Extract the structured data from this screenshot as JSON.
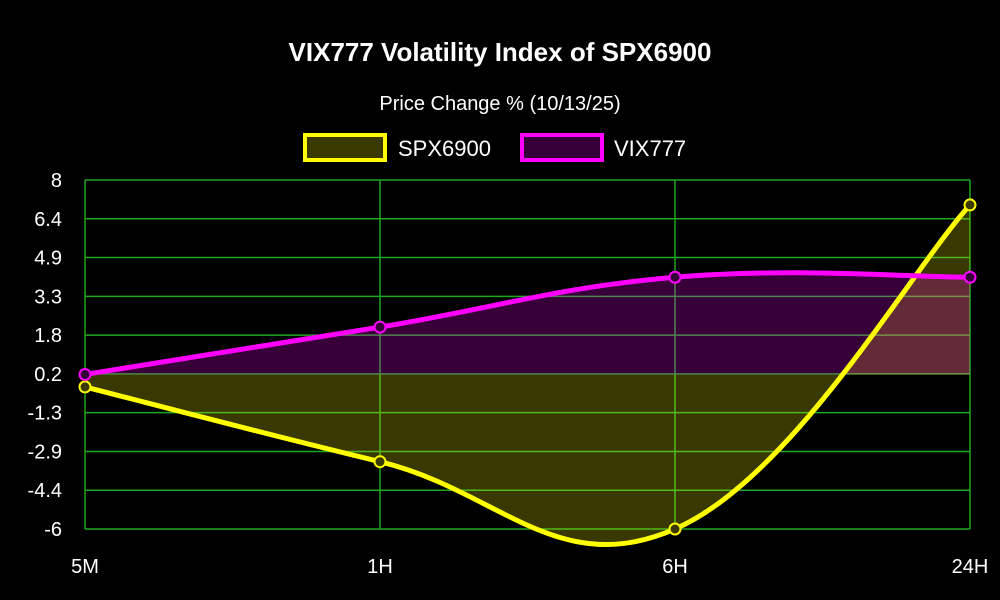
{
  "chart_data": {
    "type": "line",
    "title": "VIX777 Volatility Index of SPX6900",
    "subtitle": "Price Change % (10/13/25)",
    "categories": [
      "5M",
      "1H",
      "6H",
      "24H"
    ],
    "y_ticks": [
      "8",
      "6.4",
      "4.9",
      "3.3",
      "1.8",
      "0.2",
      "-1.3",
      "-2.9",
      "-4.4",
      "-6"
    ],
    "ylim": [
      -6,
      8
    ],
    "grid": true,
    "legend_position": "top",
    "fill_baseline": 0.2,
    "series": [
      {
        "name": "SPX6900",
        "values": [
          -0.3,
          -3.3,
          -6.0,
          7.0
        ],
        "color": "#ffff00",
        "fill": "#3a3a00"
      },
      {
        "name": "VIX777",
        "values": [
          0.2,
          2.1,
          4.1,
          4.1
        ],
        "color": "#ff00ff",
        "fill": "#35003a"
      }
    ],
    "grid_color": "#1fa81f"
  }
}
